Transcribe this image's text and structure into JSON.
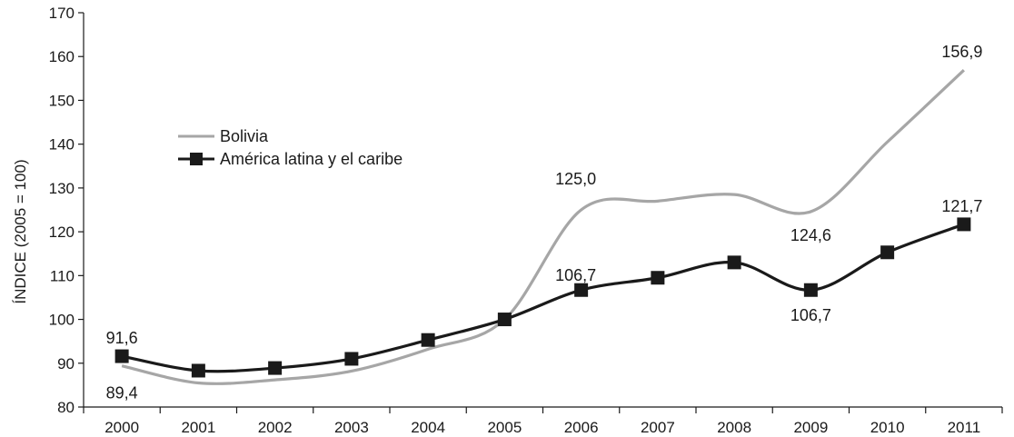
{
  "chart_data": {
    "type": "line",
    "title": "",
    "xlabel": "",
    "ylabel": "ÍNDICE (2005 = 100)",
    "ylim": [
      80,
      170
    ],
    "yticks": [
      "80",
      "90",
      "100",
      "110",
      "120",
      "130",
      "140",
      "150",
      "160",
      "170"
    ],
    "categories": [
      "2000",
      "2001",
      "2002",
      "2003",
      "2004",
      "2005",
      "2006",
      "2007",
      "2008",
      "2009",
      "2010",
      "2011"
    ],
    "grid": false,
    "legend_position": "upper-left",
    "series": [
      {
        "name": "Bolivia",
        "color": "#a6a6a6",
        "marker": "none",
        "values": [
          89.4,
          85.5,
          86.2,
          88.2,
          93.2,
          100.0,
          125.0,
          127.0,
          128.5,
          124.6,
          140.5,
          156.9
        ]
      },
      {
        "name": "América latina y el caribe",
        "color": "#1a1a1a",
        "marker": "square",
        "values": [
          91.6,
          88.3,
          88.9,
          91.0,
          95.3,
          100.0,
          106.7,
          109.5,
          113.0,
          106.7,
          115.3,
          121.7
        ]
      }
    ],
    "annotations": [
      {
        "text": "89,4",
        "series": 0,
        "index": 0,
        "placement": "below"
      },
      {
        "text": "91,6",
        "series": 1,
        "index": 0,
        "placement": "above"
      },
      {
        "text": "125,0",
        "series": 0,
        "index": 6,
        "placement": "above-left"
      },
      {
        "text": "106,7",
        "series": 1,
        "index": 6,
        "placement": "above-left"
      },
      {
        "text": "124,6",
        "series": 0,
        "index": 9,
        "placement": "below"
      },
      {
        "text": "106,7",
        "series": 1,
        "index": 9,
        "placement": "below"
      },
      {
        "text": "156,9",
        "series": 0,
        "index": 11,
        "placement": "above"
      },
      {
        "text": "121,7",
        "series": 1,
        "index": 11,
        "placement": "above"
      }
    ]
  }
}
